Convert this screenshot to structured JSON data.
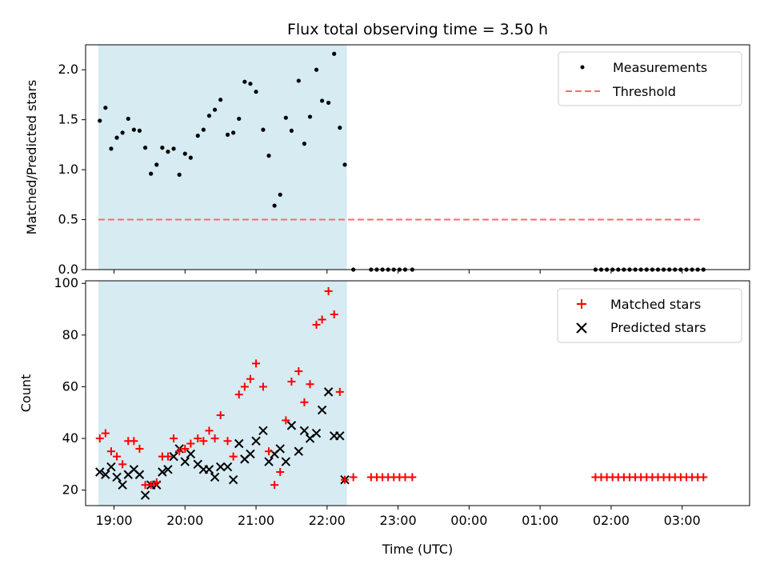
{
  "chart_data": [
    {
      "type": "scatter",
      "title": "Flux total observing time = 3.50 h",
      "ylabel": "Matched/Predicted stars",
      "xlabel": "",
      "ylim": [
        0,
        2.25
      ],
      "yticks": [
        0.0,
        0.5,
        1.0,
        1.5,
        2.0
      ],
      "ytick_labels": [
        "0.0",
        "0.5",
        "1.0",
        "1.5",
        "2.0"
      ],
      "xlim": [
        18.6,
        27.95
      ],
      "shaded_region": {
        "x0": 18.78,
        "x1": 22.28,
        "color": "#add8e6"
      },
      "grid": false,
      "legend_position": "top-right",
      "legend": [
        {
          "label": "Measurements",
          "marker": "dot",
          "color": "#000000"
        },
        {
          "label": "Threshold",
          "marker": "dashed-line",
          "color": "#ff6b6b"
        }
      ],
      "threshold": {
        "y": 0.5,
        "x0": 18.78,
        "x1": 27.3
      },
      "series": [
        {
          "name": "Measurements",
          "x": [
            18.8,
            18.88,
            18.96,
            19.04,
            19.12,
            19.2,
            19.28,
            19.36,
            19.44,
            19.52,
            19.6,
            19.68,
            19.76,
            19.84,
            19.92,
            20.0,
            20.08,
            20.18,
            20.26,
            20.34,
            20.42,
            20.5,
            20.6,
            20.68,
            20.76,
            20.84,
            20.92,
            21.0,
            21.1,
            21.18,
            21.26,
            21.34,
            21.42,
            21.5,
            21.6,
            21.68,
            21.76,
            21.85,
            21.93,
            22.02,
            22.1,
            22.18,
            22.25,
            22.37,
            22.62,
            22.7,
            22.78,
            22.86,
            22.94,
            23.02,
            23.1,
            23.2,
            25.78,
            25.86,
            25.94,
            26.02,
            26.1,
            26.18,
            26.26,
            26.34,
            26.42,
            26.5,
            26.58,
            26.66,
            26.74,
            26.82,
            26.9,
            26.98,
            27.06,
            27.14,
            27.22,
            27.3
          ],
          "y": [
            1.49,
            1.62,
            1.21,
            1.32,
            1.37,
            1.51,
            1.4,
            1.39,
            1.22,
            0.96,
            1.05,
            1.22,
            1.18,
            1.21,
            0.95,
            1.16,
            1.12,
            1.34,
            1.4,
            1.54,
            1.6,
            1.7,
            1.35,
            1.37,
            1.51,
            1.88,
            1.86,
            1.78,
            1.4,
            1.14,
            0.64,
            0.75,
            1.52,
            1.39,
            1.89,
            1.26,
            1.53,
            2.0,
            1.69,
            1.67,
            2.16,
            1.42,
            1.05,
            0.0,
            0.0,
            0.0,
            0.0,
            0.0,
            0.0,
            0.0,
            0.0,
            0.0,
            0.0,
            0.0,
            0.0,
            0.0,
            0.0,
            0.0,
            0.0,
            0.0,
            0.0,
            0.0,
            0.0,
            0.0,
            0.0,
            0.0,
            0.0,
            0.0,
            0.0,
            0.0,
            0.0,
            0.0
          ],
          "color": "#000000"
        }
      ]
    },
    {
      "type": "scatter",
      "title": "",
      "ylabel": "Count",
      "xlabel": "Time (UTC)",
      "ylim": [
        14,
        101
      ],
      "yticks": [
        20,
        40,
        60,
        80,
        100
      ],
      "ytick_labels": [
        "20",
        "40",
        "60",
        "80",
        "100"
      ],
      "xlim": [
        18.6,
        27.95
      ],
      "xticks": [
        19,
        20,
        21,
        22,
        23,
        24,
        25,
        26,
        27
      ],
      "xtick_labels": [
        "19:00",
        "20:00",
        "21:00",
        "22:00",
        "23:00",
        "00:00",
        "01:00",
        "02:00",
        "03:00"
      ],
      "shaded_region": {
        "x0": 18.78,
        "x1": 22.28,
        "color": "#add8e6"
      },
      "grid": false,
      "legend_position": "top-right",
      "legend": [
        {
          "label": "Matched stars",
          "marker": "plus",
          "color": "#ff0000"
        },
        {
          "label": "Predicted stars",
          "marker": "cross",
          "color": "#000000"
        }
      ],
      "series": [
        {
          "name": "Matched stars",
          "marker": "plus",
          "color": "#ff0000",
          "x": [
            18.8,
            18.88,
            18.96,
            19.04,
            19.12,
            19.2,
            19.28,
            19.36,
            19.44,
            19.52,
            19.6,
            19.68,
            19.76,
            19.84,
            19.92,
            20.0,
            20.08,
            20.18,
            20.26,
            20.34,
            20.42,
            20.5,
            20.6,
            20.68,
            20.76,
            20.84,
            20.92,
            21.0,
            21.1,
            21.18,
            21.26,
            21.34,
            21.42,
            21.5,
            21.6,
            21.68,
            21.76,
            21.85,
            21.93,
            22.02,
            22.1,
            22.18,
            22.25,
            22.37,
            22.62,
            22.7,
            22.78,
            22.86,
            22.94,
            23.02,
            23.1,
            23.2,
            25.78,
            25.86,
            25.94,
            26.02,
            26.1,
            26.18,
            26.26,
            26.34,
            26.42,
            26.5,
            26.58,
            26.66,
            26.74,
            26.82,
            26.9,
            26.98,
            27.06,
            27.14,
            27.22,
            27.3
          ],
          "y": [
            40,
            42,
            35,
            33,
            30,
            39,
            39,
            36,
            22,
            22,
            23,
            33,
            33,
            40,
            35,
            36,
            38,
            40,
            39,
            43,
            40,
            49,
            39,
            33,
            57,
            60,
            63,
            69,
            60,
            35,
            22,
            27,
            47,
            62,
            66,
            54,
            61,
            84,
            86,
            97,
            88,
            58,
            24,
            25,
            25,
            25,
            25,
            25,
            25,
            25,
            25,
            25,
            25,
            25,
            25,
            25,
            25,
            25,
            25,
            25,
            25,
            25,
            25,
            25,
            25,
            25,
            25,
            25,
            25,
            25,
            25,
            25
          ]
        },
        {
          "name": "Predicted stars",
          "marker": "cross",
          "color": "#000000",
          "x": [
            18.8,
            18.88,
            18.96,
            19.04,
            19.12,
            19.2,
            19.28,
            19.36,
            19.44,
            19.52,
            19.6,
            19.68,
            19.76,
            19.84,
            19.92,
            20.0,
            20.08,
            20.18,
            20.26,
            20.34,
            20.42,
            20.5,
            20.6,
            20.68,
            20.76,
            20.84,
            20.92,
            21.0,
            21.1,
            21.18,
            21.26,
            21.34,
            21.42,
            21.5,
            21.6,
            21.68,
            21.76,
            21.85,
            21.93,
            22.02,
            22.1,
            22.18,
            22.25
          ],
          "y": [
            27,
            26,
            29,
            25,
            22,
            26,
            28,
            26,
            18,
            22,
            22,
            27,
            28,
            33,
            36,
            31,
            34,
            30,
            28,
            28,
            25,
            29,
            29,
            24,
            38,
            32,
            34,
            39,
            43,
            31,
            34,
            36,
            31,
            45,
            35,
            43,
            40,
            42,
            51,
            58,
            41,
            41,
            24
          ]
        }
      ]
    }
  ]
}
